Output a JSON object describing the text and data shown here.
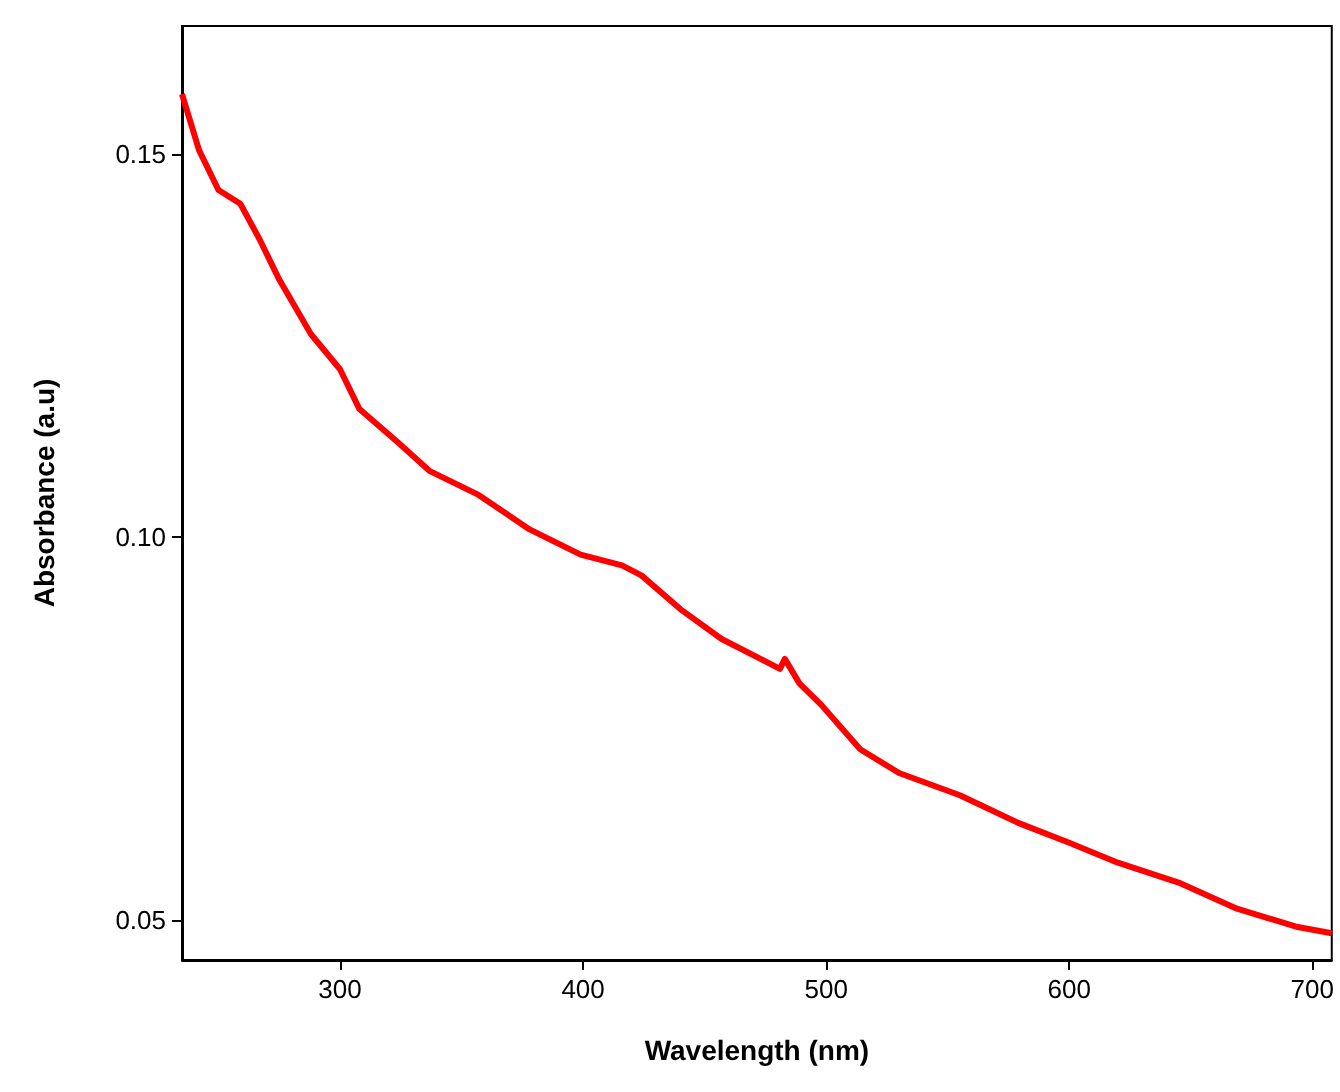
{
  "chart_data": {
    "type": "line",
    "xlabel": "Wavelength (nm)",
    "ylabel": "Absorbance (a.u)",
    "x": [
      235,
      242,
      250,
      259,
      267,
      275,
      288,
      300,
      308,
      324,
      337,
      357,
      378,
      399,
      416,
      424,
      440,
      457,
      473,
      481,
      483,
      489,
      498,
      514,
      530,
      555,
      579,
      600,
      620,
      645,
      669,
      694,
      708
    ],
    "series": [
      {
        "color": "#ff0000",
        "values": [
          0.1578,
          0.1505,
          0.1453,
          0.1435,
          0.1388,
          0.1336,
          0.1265,
          0.1219,
          0.1167,
          0.1123,
          0.1086,
          0.1055,
          0.101,
          0.0977,
          0.0963,
          0.095,
          0.0906,
          0.0867,
          0.0841,
          0.0828,
          0.0841,
          0.0809,
          0.0781,
          0.0723,
          0.0692,
          0.0663,
          0.0627,
          0.0601,
          0.0575,
          0.0549,
          0.0515,
          0.0491,
          0.0483
        ]
      }
    ],
    "xlim": [
      235,
      708
    ],
    "xticks": [
      300,
      400,
      500,
      600,
      700
    ],
    "ylim": [
      0.0448,
      0.1667
    ],
    "yticks": [
      {
        "value": 0.05,
        "label": "0.05"
      },
      {
        "value": 0.1,
        "label": "0.10"
      },
      {
        "value": 0.15,
        "label": "0.15"
      }
    ],
    "marker": "none",
    "line_style": "solid"
  }
}
